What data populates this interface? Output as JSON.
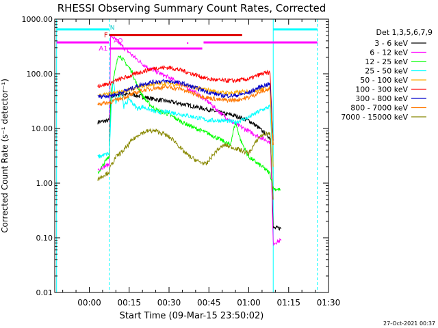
{
  "chart_data": {
    "type": "line",
    "title": "RHESSI Observing Summary Count Rates, Corrected",
    "xlabel": "Start Time (09-Mar-15 23:50:02)",
    "ylabel": "Corrected Count Rate (s⁻¹ detector⁻¹)",
    "y_scale": "log",
    "ylim": [
      0.01,
      1000
    ],
    "xlim_minutes": [
      -13,
      90
    ],
    "x_ticks": [
      {
        "m": 0,
        "label": "00:00"
      },
      {
        "m": 15,
        "label": "00:15"
      },
      {
        "m": 30,
        "label": "00:30"
      },
      {
        "m": 45,
        "label": "00:45"
      },
      {
        "m": 60,
        "label": "01:00"
      },
      {
        "m": 75,
        "label": "01:15"
      },
      {
        "m": 90,
        "label": "01:30"
      }
    ],
    "y_ticks": [
      {
        "v": 1000,
        "label": "1000.00"
      },
      {
        "v": 100,
        "label": "100.00"
      },
      {
        "v": 10,
        "label": "10.00"
      },
      {
        "v": 1,
        "label": "1.00"
      },
      {
        "v": 0.1,
        "label": "0.10"
      },
      {
        "v": 0.01,
        "label": "0.01"
      }
    ],
    "legend_title": "Det 1,3,5,6,7,9",
    "legend_position": "right",
    "series": [
      {
        "name": "3 - 6 keV",
        "color": "#000000",
        "points": [
          [
            3.2,
            13
          ],
          [
            7.5,
            14
          ],
          [
            8.2,
            38
          ],
          [
            10,
            42
          ],
          [
            13,
            42
          ],
          [
            16,
            42
          ],
          [
            20,
            38
          ],
          [
            25,
            34
          ],
          [
            30,
            31
          ],
          [
            35,
            28
          ],
          [
            40,
            25
          ],
          [
            45,
            22
          ],
          [
            50,
            19
          ],
          [
            55,
            17
          ],
          [
            60,
            14
          ],
          [
            63,
            11
          ],
          [
            65,
            9
          ],
          [
            67,
            7.5
          ],
          [
            68.2,
            6.5
          ],
          [
            69.2,
            0.15
          ],
          [
            72.2,
            0.15
          ]
        ]
      },
      {
        "name": "6 - 12 keV",
        "color": "#ff00ff",
        "points": [
          [
            3.2,
            1.8
          ],
          [
            7.5,
            2.2
          ],
          [
            8,
            500
          ],
          [
            10,
            420
          ],
          [
            13,
            300
          ],
          [
            17,
            200
          ],
          [
            21,
            140
          ],
          [
            25,
            110
          ],
          [
            30,
            85
          ],
          [
            35,
            63
          ],
          [
            40,
            45
          ],
          [
            45,
            30
          ],
          [
            50,
            18
          ],
          [
            55,
            12
          ],
          [
            60,
            9
          ],
          [
            64,
            7
          ],
          [
            67,
            6
          ],
          [
            68.2,
            5.5
          ],
          [
            69.2,
            0.08
          ],
          [
            72.2,
            0.09
          ]
        ]
      },
      {
        "name": "12 - 25 keV",
        "color": "#00ff00",
        "points": [
          [
            3.2,
            1.5
          ],
          [
            7.5,
            3.2
          ],
          [
            8.2,
            50
          ],
          [
            10,
            130
          ],
          [
            11,
            230
          ],
          [
            12,
            200
          ],
          [
            14,
            150
          ],
          [
            16,
            110
          ],
          [
            18,
            60
          ],
          [
            20,
            40
          ],
          [
            22,
            30
          ],
          [
            25,
            22
          ],
          [
            30,
            18
          ],
          [
            35,
            13
          ],
          [
            40,
            10
          ],
          [
            45,
            8
          ],
          [
            50,
            6
          ],
          [
            53,
            5
          ],
          [
            55,
            13
          ],
          [
            57,
            6
          ],
          [
            60,
            3
          ],
          [
            65,
            2
          ],
          [
            68,
            1.5
          ],
          [
            69.2,
            0.8
          ],
          [
            72,
            0.75
          ]
        ]
      },
      {
        "name": "25 - 50 keV",
        "color": "#00ffff",
        "points": [
          [
            3.2,
            3
          ],
          [
            7.5,
            3.5
          ],
          [
            8.2,
            20
          ],
          [
            9,
            80
          ],
          [
            10,
            30
          ],
          [
            12,
            50
          ],
          [
            13,
            25
          ],
          [
            15,
            35
          ],
          [
            18,
            23
          ],
          [
            20,
            25
          ],
          [
            25,
            20
          ],
          [
            30,
            20
          ],
          [
            35,
            18
          ],
          [
            40,
            16
          ],
          [
            45,
            14
          ],
          [
            50,
            14
          ],
          [
            55,
            13
          ],
          [
            60,
            16
          ],
          [
            65,
            22
          ],
          [
            68,
            25
          ],
          [
            69.2,
            1.5
          ]
        ]
      },
      {
        "name": "50 - 100 keV",
        "color": "#ffaa00",
        "points": [
          [
            3.2,
            40
          ],
          [
            7.5,
            42
          ],
          [
            10,
            45
          ],
          [
            15,
            50
          ],
          [
            20,
            60
          ],
          [
            25,
            66
          ],
          [
            30,
            67
          ],
          [
            35,
            62
          ],
          [
            40,
            55
          ],
          [
            45,
            50
          ],
          [
            50,
            45
          ],
          [
            55,
            45
          ],
          [
            60,
            48
          ],
          [
            65,
            52
          ],
          [
            68,
            54
          ],
          [
            69.2,
            2
          ]
        ]
      },
      {
        "name": "100 - 300 keV",
        "color": "#ff0000",
        "points": [
          [
            3.2,
            60
          ],
          [
            7.5,
            66
          ],
          [
            10,
            75
          ],
          [
            15,
            90
          ],
          [
            20,
            110
          ],
          [
            25,
            128
          ],
          [
            30,
            130
          ],
          [
            35,
            115
          ],
          [
            40,
            95
          ],
          [
            45,
            80
          ],
          [
            50,
            75
          ],
          [
            55,
            75
          ],
          [
            60,
            80
          ],
          [
            65,
            100
          ],
          [
            68,
            105
          ],
          [
            69.2,
            5
          ]
        ]
      },
      {
        "name": "300 - 800 keV",
        "color": "#0000cc",
        "points": [
          [
            3.2,
            38
          ],
          [
            7.5,
            40
          ],
          [
            10,
            42
          ],
          [
            15,
            52
          ],
          [
            20,
            65
          ],
          [
            25,
            72
          ],
          [
            30,
            73
          ],
          [
            35,
            67
          ],
          [
            40,
            55
          ],
          [
            45,
            46
          ],
          [
            50,
            40
          ],
          [
            55,
            40
          ],
          [
            60,
            45
          ],
          [
            65,
            60
          ],
          [
            68,
            65
          ],
          [
            69.2,
            6
          ]
        ]
      },
      {
        "name": "800 - 7000 keV",
        "color": "#ff7700",
        "points": [
          [
            3.2,
            28
          ],
          [
            7.5,
            30
          ],
          [
            10,
            33
          ],
          [
            15,
            40
          ],
          [
            20,
            50
          ],
          [
            25,
            55
          ],
          [
            30,
            57
          ],
          [
            35,
            52
          ],
          [
            40,
            42
          ],
          [
            45,
            36
          ],
          [
            50,
            33
          ],
          [
            55,
            33
          ],
          [
            60,
            37
          ],
          [
            65,
            48
          ],
          [
            68,
            52
          ],
          [
            69.2,
            5
          ]
        ]
      },
      {
        "name": "7000 - 15000 keV",
        "color": "#888800",
        "points": [
          [
            3.2,
            1.2
          ],
          [
            7.5,
            1.6
          ],
          [
            8,
            2
          ],
          [
            10,
            3
          ],
          [
            13,
            4
          ],
          [
            16,
            6
          ],
          [
            19,
            8
          ],
          [
            22,
            9
          ],
          [
            25,
            9
          ],
          [
            28,
            8
          ],
          [
            32,
            6
          ],
          [
            35,
            4
          ],
          [
            38,
            3
          ],
          [
            41,
            2.5
          ],
          [
            44,
            2.2
          ],
          [
            46,
            3
          ],
          [
            48,
            4
          ],
          [
            51,
            5
          ],
          [
            54,
            4.5
          ],
          [
            57,
            4
          ],
          [
            60,
            3.5
          ],
          [
            62,
            5
          ],
          [
            64,
            7
          ],
          [
            66,
            8
          ],
          [
            68,
            8
          ],
          [
            69.2,
            0.5
          ]
        ]
      }
    ],
    "vertical_lines": [
      {
        "m": -12.3,
        "color": "#00ffff",
        "style": "solid"
      },
      {
        "m": 7.5,
        "color": "#00ffff",
        "style": "dashed"
      },
      {
        "m": 69.2,
        "color": "#00ffff",
        "style": "solid"
      },
      {
        "m": 85.8,
        "color": "#00ffff",
        "style": "dashed"
      }
    ],
    "flag_bars": [
      {
        "label": "",
        "color": "#00ffff",
        "y": 650,
        "segments": [
          [
            -12.3,
            7.5
          ],
          [
            69.2,
            85.8
          ]
        ]
      },
      {
        "label": "F",
        "color": "#dd0000",
        "y": 510,
        "segments": [
          [
            7.5,
            57.5
          ]
        ]
      },
      {
        "label": "",
        "color": "#ff00ff",
        "y": 375,
        "segments": [
          [
            -12.3,
            7.5
          ],
          [
            43,
            85.8
          ]
        ]
      },
      {
        "label": "A1",
        "color": "#ff00ff",
        "y": 290,
        "segments": [
          [
            7.5,
            42.5
          ]
        ]
      }
    ],
    "flag_marks": [
      {
        "label": "N",
        "color": "#00cccc",
        "m": 7.8,
        "v": 700
      },
      {
        "label": "AO",
        "color": "#ff00ff",
        "m": 9.2,
        "v": 405
      },
      {
        "label": "",
        "color": "#ff00ff",
        "m": 37,
        "v": 365
      }
    ]
  },
  "footer": {
    "timestamp": "27-Oct-2021 00:37"
  }
}
